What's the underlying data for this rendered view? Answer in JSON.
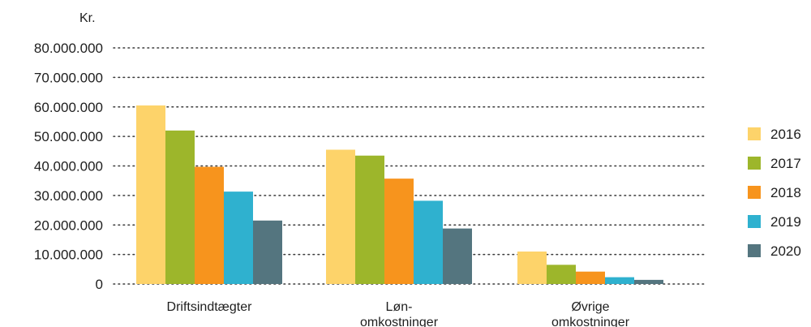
{
  "chart_data": {
    "type": "bar",
    "unit_label": "Kr.",
    "categories": [
      [
        "Driftsindtægter"
      ],
      [
        "Løn-",
        "omkostninger"
      ],
      [
        "Øvrige",
        "omkostninger"
      ]
    ],
    "series": [
      {
        "name": "2016",
        "color": "#fdd36a",
        "values": [
          60500000,
          45500000,
          11000000
        ]
      },
      {
        "name": "2017",
        "color": "#9db62b",
        "values": [
          52000000,
          43500000,
          6500000
        ]
      },
      {
        "name": "2018",
        "color": "#f7941d",
        "values": [
          39700000,
          35700000,
          4200000
        ]
      },
      {
        "name": "2019",
        "color": "#2fb1cf",
        "values": [
          31300000,
          28200000,
          2300000
        ]
      },
      {
        "name": "2020",
        "color": "#54757f",
        "values": [
          21500000,
          18800000,
          1400000
        ]
      }
    ],
    "yticks": [
      "0",
      "10.000.000",
      "20.000.000",
      "30.000.000",
      "40.000.000",
      "50.000.000",
      "60.000.000",
      "70.000.000",
      "80.000.000"
    ],
    "ylim": [
      0,
      80000000
    ],
    "grid": true,
    "legend_position": "right"
  }
}
